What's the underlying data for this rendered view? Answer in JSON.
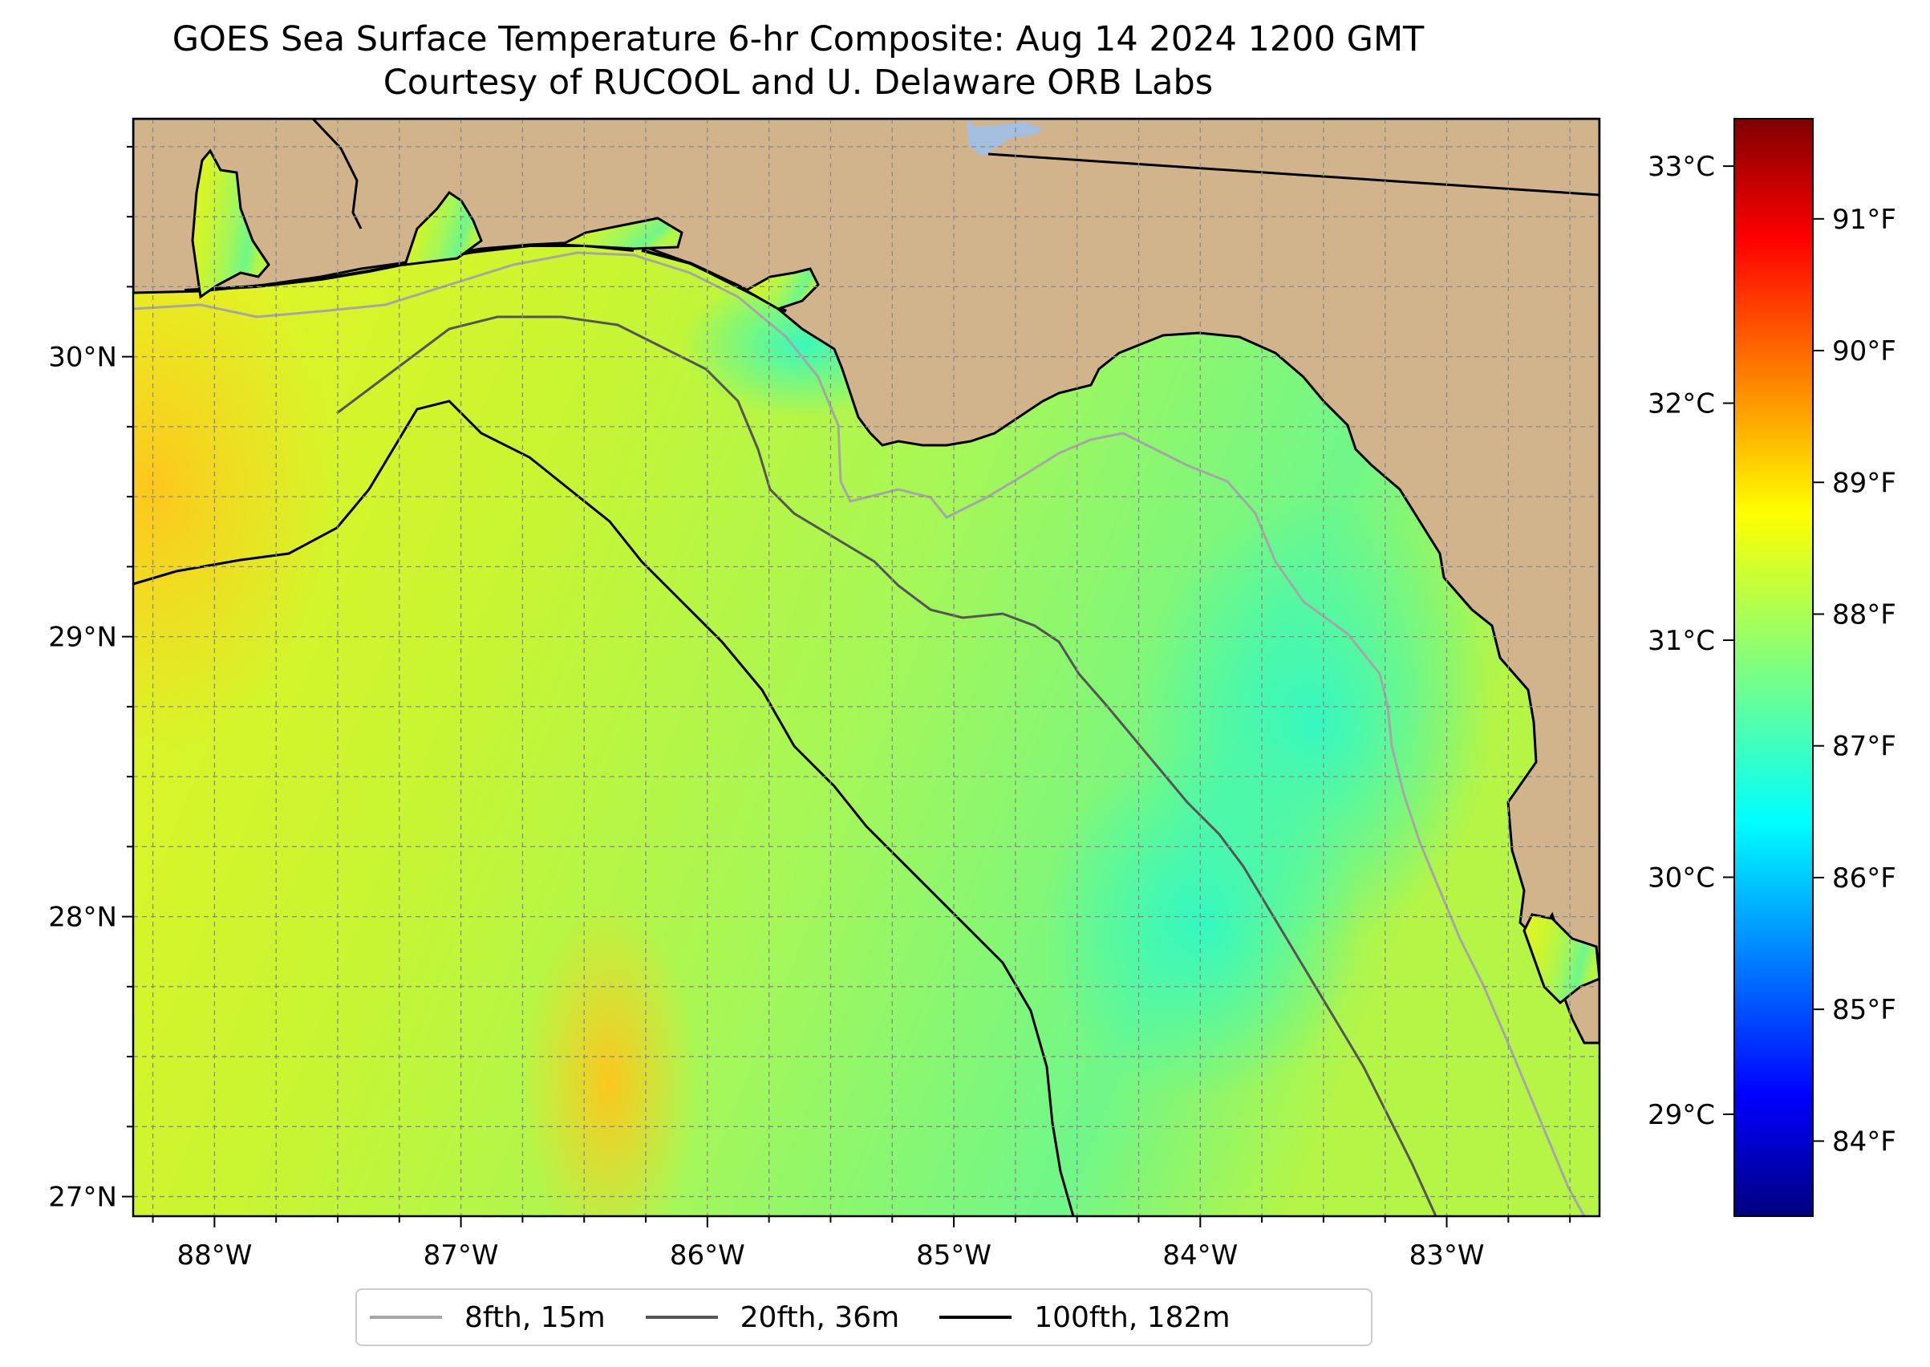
{
  "title": "GOES Sea Surface Temperature 6-hr Composite: Aug 14 2024 1200 GMT",
  "subtitle": "Courtesy of RUCOOL and U. Delaware ORB Labs",
  "map": {
    "lon_range": [
      -88.33,
      -82.38
    ],
    "lat_range": [
      26.93,
      30.85
    ],
    "lon_ticks": [
      {
        "value": -88,
        "label": "88°W"
      },
      {
        "value": -87,
        "label": "87°W"
      },
      {
        "value": -86,
        "label": "86°W"
      },
      {
        "value": -85,
        "label": "85°W"
      },
      {
        "value": -84,
        "label": "84°W"
      },
      {
        "value": -83,
        "label": "83°W"
      }
    ],
    "lat_ticks": [
      {
        "value": 30,
        "label": "30°N"
      },
      {
        "value": 29,
        "label": "29°N"
      },
      {
        "value": 28,
        "label": "28°N"
      },
      {
        "value": 27,
        "label": "27°N"
      }
    ],
    "gridlines": true,
    "gridline_step_deg": 0.25,
    "colors": {
      "land": "#d2b48c",
      "lake": "#a4bee0",
      "warm_sst": "#ffd01c",
      "mid_sst": "#c8f532",
      "cool_sst": "#2cf9c9",
      "isobath_15m": "#a6a6a6",
      "isobath_36m": "#555555",
      "isobath_182m": "#000000"
    }
  },
  "colorbar": {
    "celsius_ticks": [
      {
        "value": 33,
        "label": "33°C"
      },
      {
        "value": 32,
        "label": "32°C"
      },
      {
        "value": 31,
        "label": "31°C"
      },
      {
        "value": 30,
        "label": "30°C"
      },
      {
        "value": 29,
        "label": "29°C"
      }
    ],
    "fahrenheit_ticks": [
      {
        "value": 91,
        "label": "91°F"
      },
      {
        "value": 90,
        "label": "90°F"
      },
      {
        "value": 89,
        "label": "89°F"
      },
      {
        "value": 88,
        "label": "88°F"
      },
      {
        "value": 87,
        "label": "87°F"
      },
      {
        "value": 86,
        "label": "86°F"
      },
      {
        "value": 85,
        "label": "85°F"
      },
      {
        "value": 84,
        "label": "84°F"
      }
    ],
    "celsius_range": [
      28.57,
      33.2
    ],
    "fahrenheit_range": [
      83.43,
      91.76
    ],
    "colormap": "jet"
  },
  "legend": [
    {
      "label": "8fth, 15m",
      "color": "#a6a6a6"
    },
    {
      "label": "20fth, 36m",
      "color": "#555555"
    },
    {
      "label": "100fth, 182m",
      "color": "#000000"
    }
  ]
}
